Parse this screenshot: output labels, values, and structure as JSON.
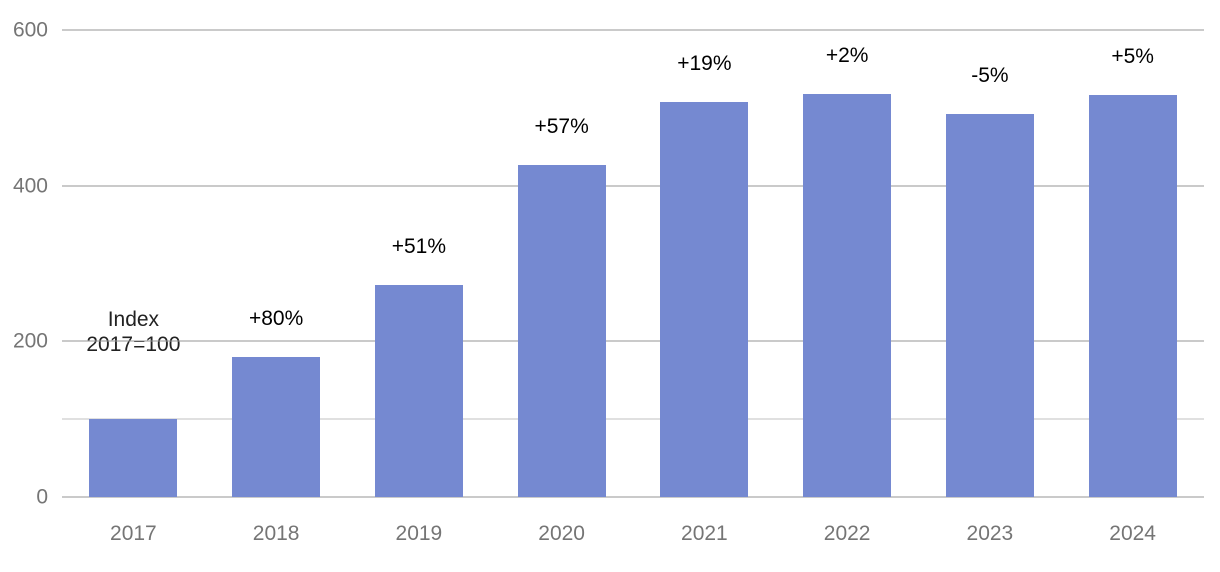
{
  "chart_data": {
    "type": "bar",
    "title": "",
    "categories": [
      "2017",
      "2018",
      "2019",
      "2020",
      "2021",
      "2022",
      "2023",
      "2024"
    ],
    "values": [
      100,
      180,
      272,
      427,
      508,
      518,
      492,
      517
    ],
    "bar_labels": [
      "",
      "+80%",
      "+51%",
      "+57%",
      "+19%",
      "+2%",
      "-5%",
      "+5%"
    ],
    "annotation": {
      "line1": "Index",
      "line2": "2017=100"
    },
    "xlabel": "",
    "ylabel": "",
    "ylim": [
      0,
      600
    ],
    "yticks": [
      0,
      200,
      400,
      600
    ],
    "gridlines": [
      {
        "value": 0
      },
      {
        "value": 100,
        "minor": true
      },
      {
        "value": 200
      },
      {
        "value": 400
      },
      {
        "value": 600
      }
    ],
    "grid": "horizontal",
    "legend": "none",
    "colors": {
      "bar": "#7589d1",
      "gridline": "#949494",
      "minor_gridline": "#c2c2c2",
      "tick_label": "#757575",
      "value_label": "#000000",
      "annotation": "#222222"
    }
  }
}
